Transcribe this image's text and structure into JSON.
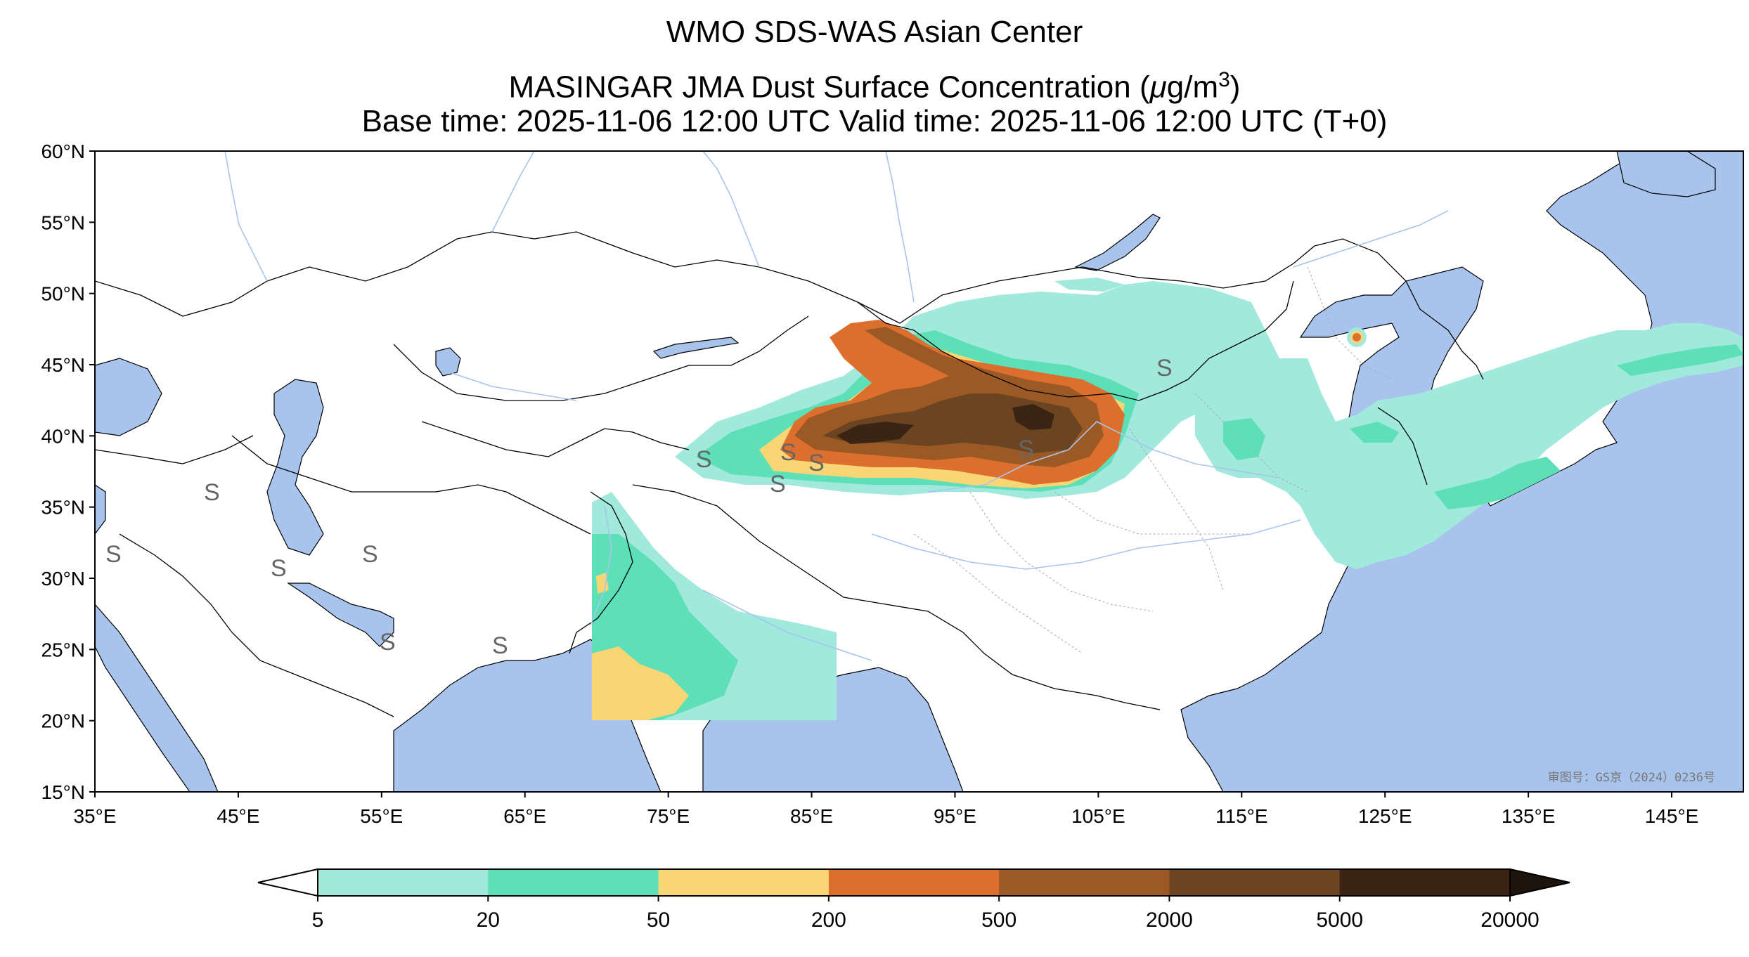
{
  "title": {
    "line1": "WMO SDS-WAS Asian Center",
    "line2_prefix": "MASINGAR JMA Dust Surface Concentration (",
    "line2_unit_mu": "μ",
    "line2_unit_rest": "g/m",
    "line2_sup": "3",
    "line2_suffix": ")",
    "line3": "Base time: 2025-11-06 12:00 UTC Valid time: 2025-11-06 12:00 UTC (T+0)"
  },
  "map": {
    "extent": {
      "lon": [
        35,
        150
      ],
      "lat": [
        15,
        60
      ]
    },
    "lat_ticks": [
      {
        "value": 60,
        "label": "60°N"
      },
      {
        "value": 55,
        "label": "55°N"
      },
      {
        "value": 50,
        "label": "50°N"
      },
      {
        "value": 45,
        "label": "45°N"
      },
      {
        "value": 40,
        "label": "40°N"
      },
      {
        "value": 35,
        "label": "35°N"
      },
      {
        "value": 30,
        "label": "30°N"
      },
      {
        "value": 25,
        "label": "25°N"
      },
      {
        "value": 20,
        "label": "20°N"
      },
      {
        "value": 15,
        "label": "15°N"
      }
    ],
    "lon_ticks": [
      {
        "value": 35,
        "label": "35°E"
      },
      {
        "value": 45,
        "label": "45°E"
      },
      {
        "value": 55,
        "label": "55°E"
      },
      {
        "value": 65,
        "label": "65°E"
      },
      {
        "value": 75,
        "label": "75°E"
      },
      {
        "value": 85,
        "label": "85°E"
      },
      {
        "value": 95,
        "label": "95°E"
      },
      {
        "value": 105,
        "label": "105°E"
      },
      {
        "value": 115,
        "label": "115°E"
      },
      {
        "value": 125,
        "label": "125°E"
      },
      {
        "value": 135,
        "label": "135°E"
      },
      {
        "value": 145,
        "label": "145°E"
      }
    ],
    "ocean_color": "#a9c4ec",
    "land_color": "#ffffff",
    "stamp": "审图号：GS京（2024）0236号"
  },
  "colorbar": {
    "labels": [
      "5",
      "20",
      "50",
      "200",
      "500",
      "2000",
      "5000",
      "20000"
    ],
    "colors": [
      "#a0e9dc",
      "#5de0b8",
      "#f9d673",
      "#dc6f2e",
      "#9b5a25",
      "#6b4421",
      "#3c2414"
    ],
    "under_color": "#ffffff",
    "over_color": "#1e140c"
  }
}
